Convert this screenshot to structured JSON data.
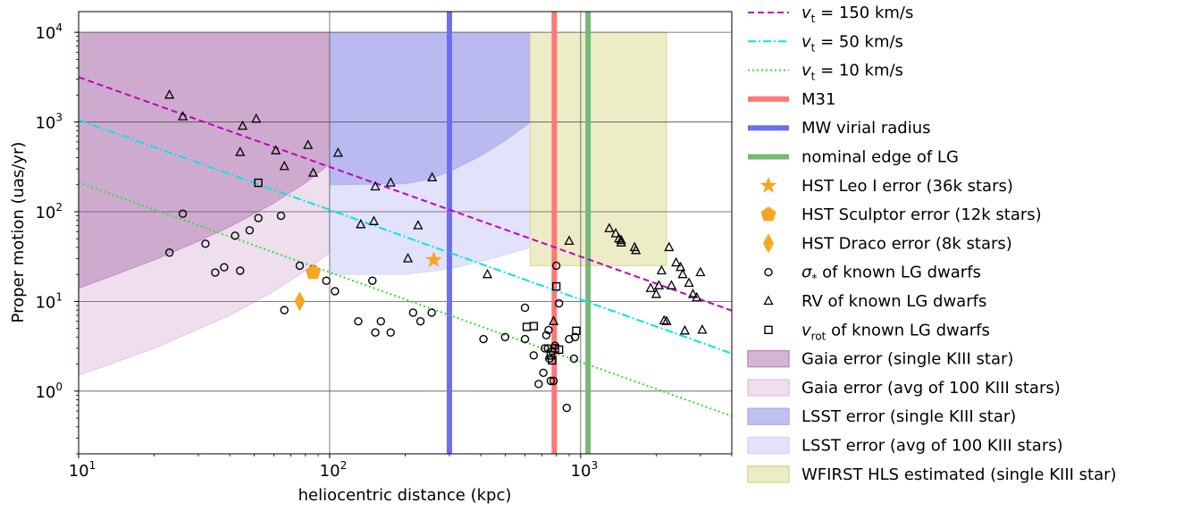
{
  "chart_data": {
    "type": "scatter",
    "title": "",
    "xlabel": "heliocentric distance (kpc)",
    "ylabel": "Proper motion (uas/yr)",
    "xscale": "log",
    "yscale": "log",
    "xlim": [
      10,
      4000
    ],
    "ylim": [
      0.2,
      17000
    ],
    "grid": true,
    "legend_position": "outside-right",
    "x_ticks": [
      {
        "value": 10,
        "base": "10",
        "exp": "1"
      },
      {
        "value": 100,
        "base": "10",
        "exp": "2"
      },
      {
        "value": 1000,
        "base": "10",
        "exp": "3"
      }
    ],
    "y_ticks": [
      {
        "value": 1,
        "base": "10",
        "exp": "0"
      },
      {
        "value": 10,
        "base": "10",
        "exp": "1"
      },
      {
        "value": 100,
        "base": "10",
        "exp": "2"
      },
      {
        "value": 1000,
        "base": "10",
        "exp": "3"
      },
      {
        "value": 10000,
        "base": "10",
        "exp": "4"
      }
    ],
    "regions": [
      {
        "name": "Gaia error (avg of 100 KIII stars)",
        "color": "#e3c8e3",
        "alpha": 0.6,
        "upper": [
          [
            10,
            10000
          ],
          [
            100,
            10000
          ]
        ],
        "lower": [
          [
            10,
            1.5
          ],
          [
            20,
            3
          ],
          [
            40,
            7
          ],
          [
            60,
            13
          ],
          [
            80,
            22
          ],
          [
            100,
            35
          ]
        ]
      },
      {
        "name": "Gaia error (single KIII star)",
        "color": "#bf8ebf",
        "alpha": 0.65,
        "upper": [
          [
            10,
            10000
          ],
          [
            100,
            10000
          ]
        ],
        "lower": [
          [
            10,
            14
          ],
          [
            20,
            29
          ],
          [
            30,
            47
          ],
          [
            40,
            68
          ],
          [
            60,
            125
          ],
          [
            80,
            210
          ],
          [
            100,
            340
          ]
        ]
      },
      {
        "name": "LSST error (avg of 100 KIII stars)",
        "color": "#d6d6f8",
        "alpha": 0.7,
        "upper": [
          [
            100,
            10000
          ],
          [
            630,
            10000
          ]
        ],
        "lower": [
          [
            100,
            20
          ],
          [
            200,
            20
          ],
          [
            300,
            23
          ],
          [
            400,
            28
          ],
          [
            500,
            33
          ],
          [
            630,
            40
          ]
        ]
      },
      {
        "name": "LSST error (single KIII star)",
        "color": "#b0b0ee",
        "alpha": 0.8,
        "upper": [
          [
            100,
            10000
          ],
          [
            630,
            10000
          ]
        ],
        "lower": [
          [
            100,
            200
          ],
          [
            200,
            205
          ],
          [
            250,
            230
          ],
          [
            300,
            280
          ],
          [
            400,
            420
          ],
          [
            500,
            620
          ],
          [
            630,
            1000
          ]
        ]
      },
      {
        "name": "WFIRST HLS estimated (single KIII star)",
        "color": "#dada90",
        "alpha": 0.5,
        "upper": [
          [
            630,
            10000
          ],
          [
            2200,
            10000
          ]
        ],
        "lower": [
          [
            630,
            25
          ],
          [
            2200,
            25
          ]
        ]
      }
    ],
    "velocity_lines": [
      {
        "name": "v_t = 150 km/s",
        "label_main": "v",
        "label_sub": "t",
        "label_rest": " = 150 km/s",
        "color": "#c000c0",
        "dash": "7,4",
        "coef": 31600
      },
      {
        "name": "v_t = 50 km/s",
        "label_main": "v",
        "label_sub": "t",
        "label_rest": " = 50 km/s",
        "color": "#00e5e5",
        "dash": "9,3,2,3",
        "coef": 10500
      },
      {
        "name": "v_t = 10 km/s",
        "label_main": "v",
        "label_sub": "t",
        "label_rest": " = 10 km/s",
        "color": "#33dd33",
        "dash": "2,3",
        "coef": 2110
      }
    ],
    "vertical_lines": [
      {
        "name": "M31",
        "x": 785,
        "color": "#ff7777"
      },
      {
        "name": "MW virial radius",
        "x": 300,
        "color": "#6e6ef2"
      },
      {
        "name": "nominal edge of LG",
        "x": 1070,
        "color": "#77b877"
      }
    ],
    "hst_points": [
      {
        "name": "HST Leo I error (36k stars)",
        "marker": "star",
        "color": "#f5a623",
        "x": 260,
        "y": 29
      },
      {
        "name": "HST Sculptor error (12k stars)",
        "marker": "pentagon",
        "color": "#f5a623",
        "x": 86,
        "y": 21
      },
      {
        "name": "HST Draco error (8k stars)",
        "marker": "diamond",
        "color": "#f5a623",
        "x": 76,
        "y": 10
      }
    ],
    "series": [
      {
        "name": "σ* of known LG dwarfs",
        "label_main": "σ",
        "label_sub": "*",
        "label_rest": " of known LG dwarfs",
        "marker": "circle",
        "points": [
          [
            23,
            35
          ],
          [
            26,
            95
          ],
          [
            32,
            44
          ],
          [
            35,
            21
          ],
          [
            38,
            24
          ],
          [
            42,
            54
          ],
          [
            44,
            22
          ],
          [
            48,
            62
          ],
          [
            52,
            85
          ],
          [
            64,
            90
          ],
          [
            66,
            8
          ],
          [
            76,
            25
          ],
          [
            86,
            20
          ],
          [
            86,
            23
          ],
          [
            97,
            17
          ],
          [
            105,
            13
          ],
          [
            130,
            6
          ],
          [
            148,
            17
          ],
          [
            152,
            4.5
          ],
          [
            160,
            6
          ],
          [
            175,
            4.5
          ],
          [
            215,
            7.5
          ],
          [
            230,
            6
          ],
          [
            255,
            7.5
          ],
          [
            410,
            3.8
          ],
          [
            500,
            4
          ],
          [
            600,
            8.5
          ],
          [
            600,
            3.8
          ],
          [
            650,
            2.5
          ],
          [
            680,
            1.2
          ],
          [
            710,
            1.6
          ],
          [
            720,
            3
          ],
          [
            730,
            4.2
          ],
          [
            740,
            3
          ],
          [
            745,
            4.8
          ],
          [
            750,
            2.3
          ],
          [
            760,
            1.3
          ],
          [
            770,
            2.8
          ],
          [
            780,
            1.3
          ],
          [
            790,
            3.2
          ],
          [
            800,
            25
          ],
          [
            820,
            9.5
          ],
          [
            880,
            0.65
          ],
          [
            900,
            3.8
          ],
          [
            940,
            2.3
          ],
          [
            950,
            4
          ]
        ]
      },
      {
        "name": "RV of known LG dwarfs",
        "label_main": "RV of known LG dwarfs",
        "label_sub": "",
        "label_rest": "",
        "marker": "triangle",
        "points": [
          [
            23,
            2000
          ],
          [
            26,
            1150
          ],
          [
            45,
            900
          ],
          [
            44,
            460
          ],
          [
            51,
            1080
          ],
          [
            61,
            480
          ],
          [
            66,
            320
          ],
          [
            82,
            550
          ],
          [
            86,
            270
          ],
          [
            108,
            450
          ],
          [
            133,
            72
          ],
          [
            152,
            190
          ],
          [
            175,
            210
          ],
          [
            150,
            78
          ],
          [
            205,
            30
          ],
          [
            225,
            70
          ],
          [
            256,
            240
          ],
          [
            425,
            20
          ],
          [
            780,
            6
          ],
          [
            900,
            47
          ],
          [
            1300,
            65
          ],
          [
            1380,
            57
          ],
          [
            1420,
            50
          ],
          [
            1450,
            48
          ],
          [
            1450,
            45
          ],
          [
            1640,
            40
          ],
          [
            1660,
            37
          ],
          [
            1900,
            14
          ],
          [
            2000,
            12
          ],
          [
            2050,
            15
          ],
          [
            2100,
            22
          ],
          [
            2150,
            6.1
          ],
          [
            2200,
            6
          ],
          [
            2250,
            40
          ],
          [
            2300,
            15
          ],
          [
            2400,
            27
          ],
          [
            2500,
            24
          ],
          [
            2550,
            20
          ],
          [
            2600,
            4.7
          ],
          [
            2700,
            16
          ],
          [
            2800,
            12
          ],
          [
            2900,
            11
          ],
          [
            3000,
            21
          ],
          [
            3050,
            4.8
          ]
        ]
      },
      {
        "name": "v_rot of known LG dwarfs",
        "label_main": "v",
        "label_sub": "rot",
        "label_rest": " of known LG dwarfs",
        "marker": "square",
        "points": [
          [
            52,
            210
          ],
          [
            610,
            5.2
          ],
          [
            650,
            5.3
          ],
          [
            760,
            2.5
          ],
          [
            770,
            2.2
          ],
          [
            790,
            3
          ],
          [
            800,
            14.7
          ],
          [
            820,
            2.9
          ],
          [
            960,
            4.7
          ]
        ]
      }
    ],
    "legend_order": [
      "velocity_lines.0",
      "velocity_lines.1",
      "velocity_lines.2",
      "vertical_lines.0",
      "vertical_lines.1",
      "vertical_lines.2",
      "hst_points.0",
      "hst_points.1",
      "hst_points.2",
      "series.0",
      "series.1",
      "series.2",
      "regions.1",
      "regions.0",
      "regions.3",
      "regions.2",
      "regions.4"
    ]
  }
}
